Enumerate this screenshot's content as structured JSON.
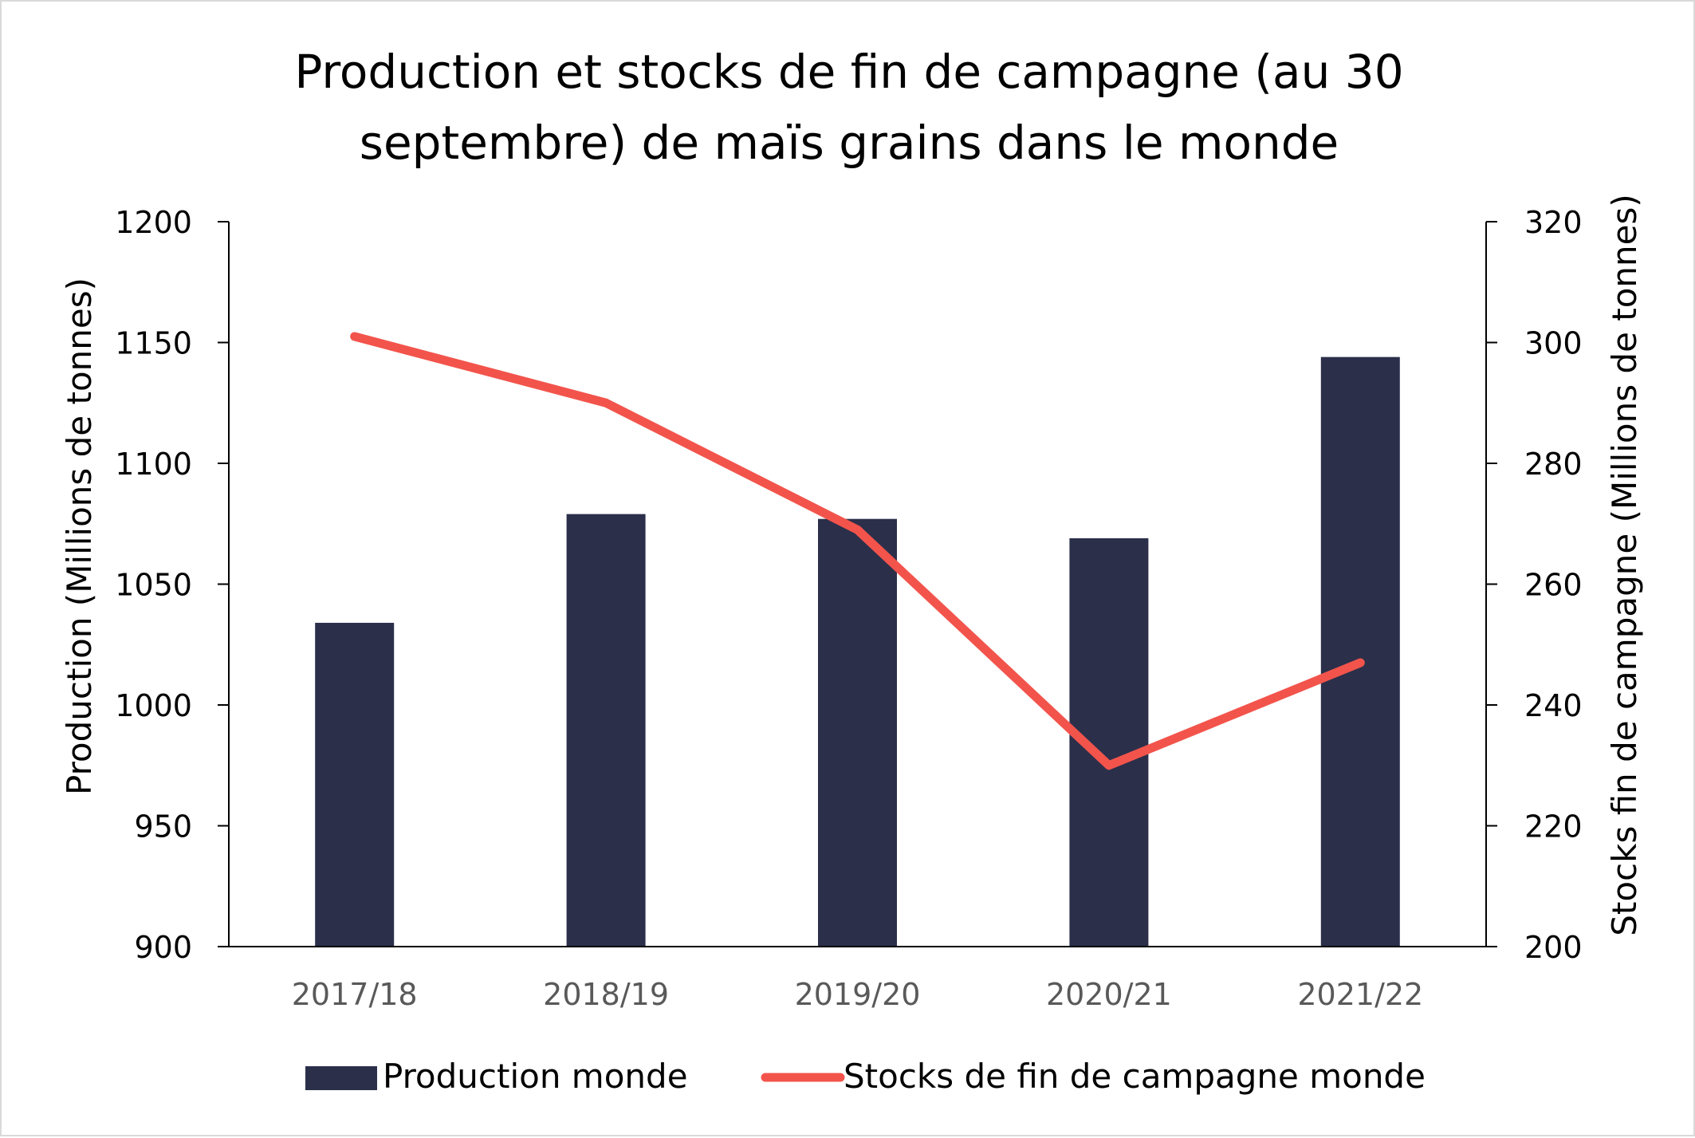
{
  "chart_data": {
    "type": "bar",
    "title": [
      "Production et stocks de fin de campagne (au 30",
      "septembre) de maïs grains dans le monde"
    ],
    "categories": [
      "2017/18",
      "2018/19",
      "2019/20",
      "2020/21",
      "2021/22"
    ],
    "series": [
      {
        "name": "Production monde",
        "type": "bar",
        "axis": "left",
        "color": "#2b2f4a",
        "values": [
          1034,
          1079,
          1077,
          1069,
          1144
        ]
      },
      {
        "name": "Stocks de fin de campagne monde",
        "type": "line",
        "axis": "right",
        "color": "#f2544c",
        "values": [
          301,
          290,
          269,
          230,
          247
        ]
      }
    ],
    "y_left": {
      "label": "Production (Millions de tonnes)",
      "range": [
        900,
        1200
      ],
      "ticks": [
        "900",
        "950",
        "1000",
        "1050",
        "1100",
        "1150",
        "1200"
      ]
    },
    "y_right": {
      "label": "Stocks fin de campagne (Millions de tonnes)",
      "range": [
        200,
        320
      ],
      "ticks": [
        "200",
        "220",
        "240",
        "260",
        "280",
        "300",
        "320"
      ]
    },
    "grid": false,
    "legend_position": "bottom"
  }
}
